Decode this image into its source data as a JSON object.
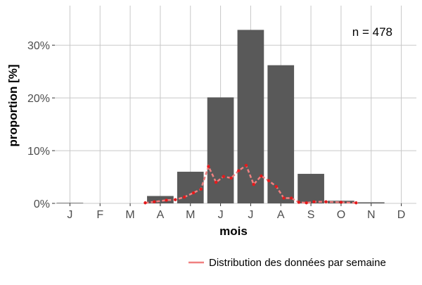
{
  "chart_data": {
    "type": "bar",
    "categories": [
      "J",
      "F",
      "M",
      "A",
      "M",
      "J",
      "J",
      "A",
      "S",
      "O",
      "N",
      "D"
    ],
    "values": [
      0.1,
      0,
      0,
      1.4,
      6.0,
      20.1,
      32.9,
      26.2,
      5.6,
      0.5,
      0.2,
      0
    ],
    "xlabel": "mois",
    "ylabel": "proportion [%]",
    "ylim": [
      0,
      37.5
    ],
    "yticks": [
      0,
      10,
      20,
      30
    ],
    "ytick_labels": [
      "0%",
      "10%",
      "20%",
      "30%"
    ],
    "annotation": "n = 478",
    "grid": true,
    "legend_position": "bottom-right",
    "bar_color": "#595959",
    "line_color": "#f08080",
    "point_color": "#e41a1c",
    "series": [
      {
        "name": "Distribution des données par semaine",
        "type": "line",
        "x": [
          3.0,
          3.3,
          3.7,
          4.0,
          4.3,
          4.6,
          4.85,
          5.1,
          5.35,
          5.6,
          5.85,
          6.1,
          6.35,
          6.6,
          6.85,
          7.1,
          7.35,
          7.6,
          7.85,
          8.1,
          8.35,
          8.6,
          9.0,
          9.5,
          10.0
        ],
        "values": [
          0.1,
          0.3,
          0.6,
          0.7,
          1.2,
          2.0,
          2.7,
          7.0,
          4.0,
          5.1,
          4.8,
          6.2,
          7.2,
          3.6,
          5.2,
          4.3,
          3.2,
          1.0,
          1.0,
          0.2,
          0.1,
          0.3,
          0.3,
          0.2,
          0.1
        ]
      }
    ]
  }
}
